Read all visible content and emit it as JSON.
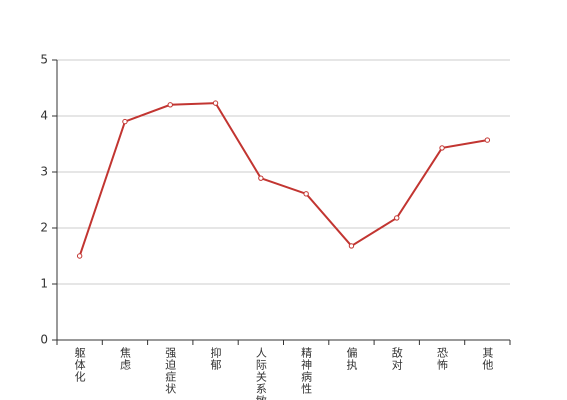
{
  "chart_data": {
    "type": "line",
    "categories": [
      "躯体化",
      "焦虑",
      "强迫症状",
      "抑郁",
      "人际关系敏感",
      "精神病性",
      "偏执",
      "敌对",
      "恐怖",
      "其他"
    ],
    "series": [
      {
        "color": "#c23531",
        "values": [
          1.5,
          3.9,
          4.2,
          4.23,
          2.89,
          2.61,
          1.68,
          2.18,
          3.43,
          3.57
        ]
      }
    ],
    "ylim": [
      0,
      5
    ],
    "yticks": [
      0,
      1,
      2,
      3,
      4,
      5
    ],
    "grid": true
  }
}
